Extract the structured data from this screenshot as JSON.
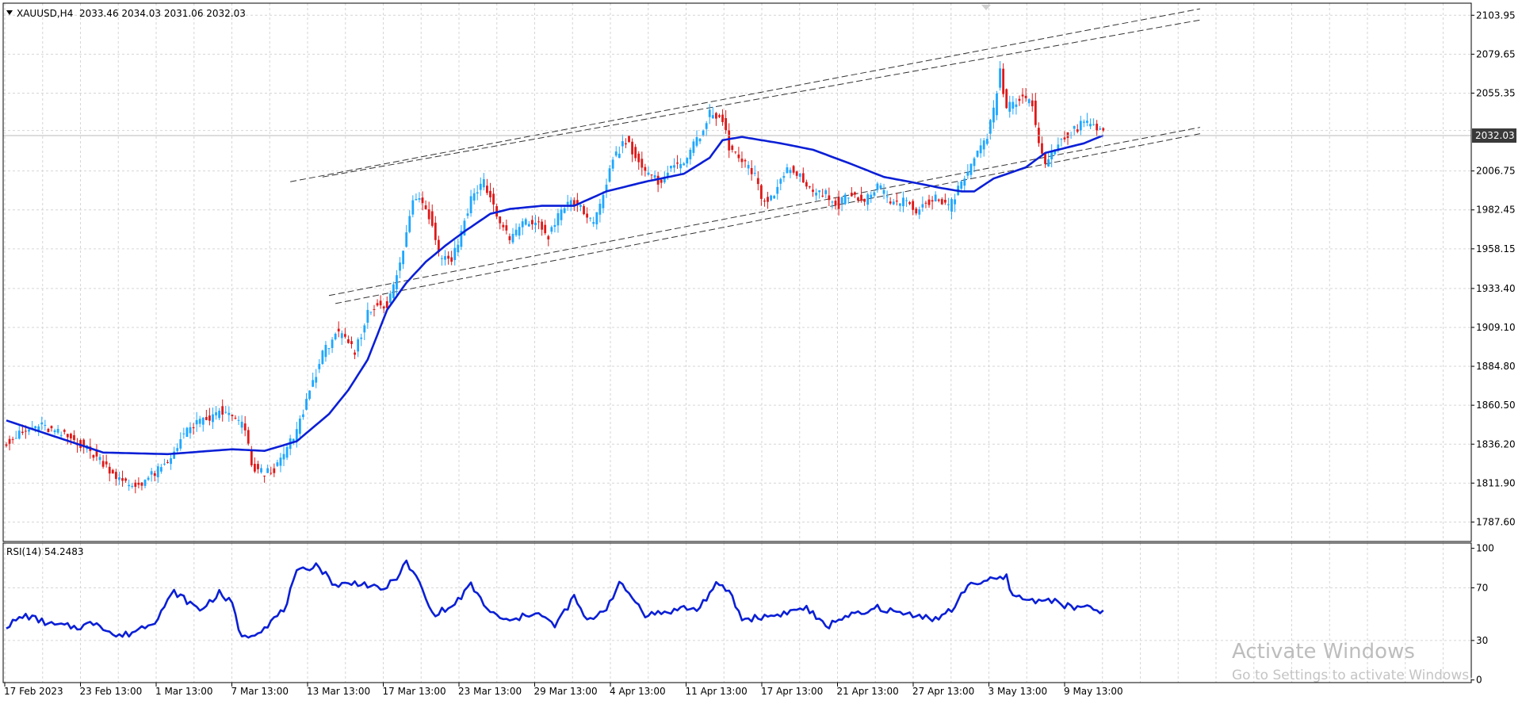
{
  "header": {
    "symbol_info": "XAUUSD,H4  2033.46 2034.03 2031.06 2032.03"
  },
  "rsi_header": "RSI(14) 54.2483",
  "current_price_label": "2032.03",
  "watermark": {
    "title": "Activate Windows",
    "subtitle": "Go to Settings to activate Windows."
  },
  "colors": {
    "bull": "#1ea7ff",
    "bear": "#e01818",
    "ma": "#0a1fd6",
    "rsi": "#0a1fd6",
    "grid": "#d6d6d6",
    "channel": "#333333",
    "price_tag_bg": "#3a3a3a"
  },
  "chart_data": [
    {
      "type": "candlestick",
      "name": "price",
      "symbol": "XAUUSD",
      "timeframe": "H4",
      "ylim": [
        1775.45,
        2111.5
      ],
      "y_ticks": [
        "2103.95",
        "2079.65",
        "2055.35",
        "2032.03",
        "2006.75",
        "1982.45",
        "1958.15",
        "1933.40",
        "1909.10",
        "1884.80",
        "1860.50",
        "1836.20",
        "1811.90",
        "1787.60"
      ],
      "x_ticks": [
        "17 Feb 2023",
        "23 Feb 13:00",
        "1 Mar 13:00",
        "7 Mar 13:00",
        "13 Mar 13:00",
        "17 Mar 13:00",
        "23 Mar 13:00",
        "29 Mar 13:00",
        "4 Apr 13:00",
        "11 Apr 13:00",
        "17 Apr 13:00",
        "21 Apr 13:00",
        "27 Apr 13:00",
        "3 May 13:00",
        "9 May 13:00"
      ],
      "anchors": [
        [
          0,
          1838
        ],
        [
          10,
          1848
        ],
        [
          22,
          1838
        ],
        [
          30,
          1825
        ],
        [
          36,
          1812
        ],
        [
          40,
          1810
        ],
        [
          46,
          1818
        ],
        [
          50,
          1824
        ],
        [
          54,
          1840
        ],
        [
          58,
          1848
        ],
        [
          64,
          1853
        ],
        [
          66,
          1857
        ],
        [
          70,
          1853
        ],
        [
          74,
          1846
        ],
        [
          76,
          1822
        ],
        [
          80,
          1818
        ],
        [
          84,
          1822
        ],
        [
          86,
          1830
        ],
        [
          90,
          1844
        ],
        [
          94,
          1870
        ],
        [
          98,
          1892
        ],
        [
          102,
          1906
        ],
        [
          106,
          1899
        ],
        [
          108,
          1893
        ],
        [
          112,
          1918
        ],
        [
          116,
          1925
        ],
        [
          118,
          1922
        ],
        [
          122,
          1948
        ],
        [
          126,
          1988
        ],
        [
          128,
          1992
        ],
        [
          132,
          1975
        ],
        [
          134,
          1955
        ],
        [
          138,
          1952
        ],
        [
          140,
          1962
        ],
        [
          144,
          1990
        ],
        [
          148,
          2000
        ],
        [
          150,
          1990
        ],
        [
          154,
          1970
        ],
        [
          156,
          1964
        ],
        [
          160,
          1974
        ],
        [
          164,
          1975
        ],
        [
          168,
          1966
        ],
        [
          170,
          1975
        ],
        [
          174,
          1987
        ],
        [
          178,
          1985
        ],
        [
          182,
          1972
        ],
        [
          184,
          1985
        ],
        [
          188,
          2015
        ],
        [
          192,
          2026
        ],
        [
          194,
          2020
        ],
        [
          198,
          2005
        ],
        [
          202,
          2000
        ],
        [
          206,
          2008
        ],
        [
          210,
          2014
        ],
        [
          214,
          2025
        ],
        [
          218,
          2042
        ],
        [
          222,
          2038
        ],
        [
          224,
          2022
        ],
        [
          228,
          2012
        ],
        [
          232,
          2004
        ],
        [
          234,
          1988
        ],
        [
          238,
          1992
        ],
        [
          242,
          2008
        ],
        [
          246,
          2004
        ],
        [
          250,
          1994
        ],
        [
          254,
          1992
        ],
        [
          258,
          1986
        ],
        [
          262,
          1994
        ],
        [
          266,
          1987
        ],
        [
          270,
          1998
        ],
        [
          274,
          1986
        ],
        [
          278,
          1988
        ],
        [
          282,
          1982
        ],
        [
          286,
          1988
        ],
        [
          288,
          1990
        ],
        [
          292,
          1983
        ],
        [
          294,
          1992
        ],
        [
          298,
          2006
        ],
        [
          302,
          2020
        ],
        [
          304,
          2028
        ],
        [
          306,
          2044
        ],
        [
          308,
          2068
        ],
        [
          310,
          2046
        ],
        [
          314,
          2052
        ],
        [
          318,
          2048
        ],
        [
          320,
          2024
        ],
        [
          322,
          2012
        ],
        [
          326,
          2024
        ],
        [
          330,
          2032
        ],
        [
          334,
          2036
        ],
        [
          336,
          2038
        ],
        [
          340,
          2032
        ]
      ],
      "moving_average": [
        [
          0,
          1851
        ],
        [
          30,
          1831
        ],
        [
          50,
          1830
        ],
        [
          70,
          1833
        ],
        [
          80,
          1832
        ],
        [
          90,
          1838
        ],
        [
          100,
          1855
        ],
        [
          106,
          1870
        ],
        [
          112,
          1889
        ],
        [
          118,
          1920
        ],
        [
          124,
          1937
        ],
        [
          130,
          1950
        ],
        [
          136,
          1960
        ],
        [
          142,
          1969
        ],
        [
          150,
          1980
        ],
        [
          156,
          1983
        ],
        [
          166,
          1985
        ],
        [
          176,
          1985
        ],
        [
          186,
          1994
        ],
        [
          198,
          2000
        ],
        [
          210,
          2005
        ],
        [
          218,
          2015
        ],
        [
          222,
          2026
        ],
        [
          228,
          2028
        ],
        [
          240,
          2024
        ],
        [
          250,
          2020
        ],
        [
          262,
          2011
        ],
        [
          272,
          2003
        ],
        [
          280,
          2000
        ],
        [
          290,
          1996
        ],
        [
          296,
          1994
        ],
        [
          300,
          1994
        ],
        [
          306,
          2002
        ],
        [
          316,
          2009
        ],
        [
          322,
          2018
        ],
        [
          334,
          2024
        ],
        [
          340,
          2029
        ]
      ]
    },
    {
      "type": "line",
      "name": "RSI(14)",
      "ylim": [
        -2,
        104
      ],
      "y_ticks": [
        100,
        70,
        30,
        0
      ],
      "values": [
        [
          0,
          41
        ],
        [
          6,
          49
        ],
        [
          14,
          42
        ],
        [
          22,
          40
        ],
        [
          28,
          44
        ],
        [
          34,
          33
        ],
        [
          38,
          35
        ],
        [
          46,
          45
        ],
        [
          52,
          67
        ],
        [
          60,
          53
        ],
        [
          66,
          66
        ],
        [
          70,
          58
        ],
        [
          72,
          38
        ],
        [
          74,
          32
        ],
        [
          80,
          40
        ],
        [
          86,
          53
        ],
        [
          90,
          81
        ],
        [
          96,
          88
        ],
        [
          102,
          72
        ],
        [
          110,
          74
        ],
        [
          116,
          68
        ],
        [
          120,
          75
        ],
        [
          124,
          89
        ],
        [
          128,
          74
        ],
        [
          132,
          50
        ],
        [
          138,
          55
        ],
        [
          144,
          72
        ],
        [
          150,
          51
        ],
        [
          156,
          44
        ],
        [
          164,
          52
        ],
        [
          170,
          41
        ],
        [
          176,
          63
        ],
        [
          180,
          44
        ],
        [
          186,
          55
        ],
        [
          190,
          73
        ],
        [
          194,
          63
        ],
        [
          198,
          50
        ],
        [
          204,
          51
        ],
        [
          210,
          55
        ],
        [
          214,
          53
        ],
        [
          220,
          72
        ],
        [
          224,
          68
        ],
        [
          228,
          46
        ],
        [
          238,
          49
        ],
        [
          248,
          55
        ],
        [
          254,
          40
        ],
        [
          260,
          49
        ],
        [
          266,
          50
        ],
        [
          270,
          55
        ],
        [
          278,
          50
        ],
        [
          282,
          50
        ],
        [
          288,
          46
        ],
        [
          294,
          55
        ],
        [
          298,
          73
        ],
        [
          304,
          75
        ],
        [
          310,
          78
        ],
        [
          312,
          64
        ],
        [
          318,
          60
        ],
        [
          322,
          62
        ],
        [
          330,
          55
        ],
        [
          334,
          55
        ],
        [
          340,
          52
        ]
      ]
    }
  ]
}
